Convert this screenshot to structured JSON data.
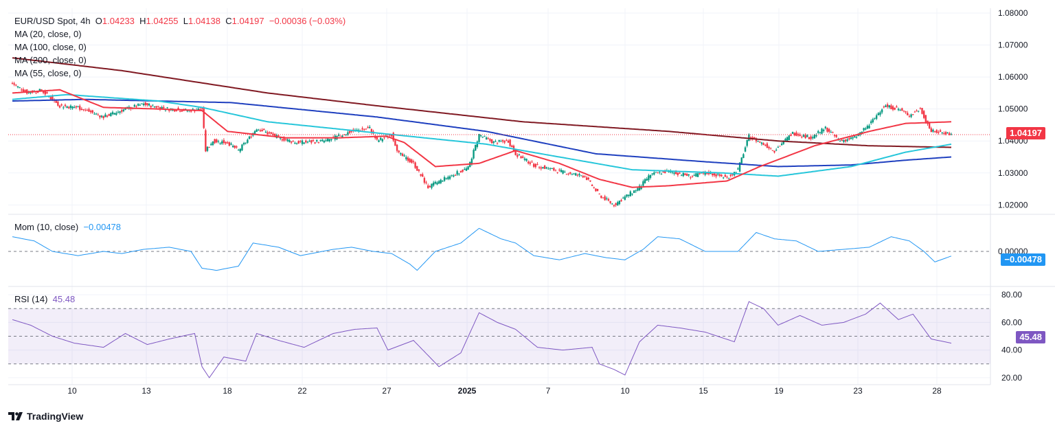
{
  "header": {
    "symbol": "EUR/USD Spot, 4h",
    "open_label": "O",
    "open": "1.04233",
    "high_label": "H",
    "high": "1.04255",
    "low_label": "L",
    "low": "1.04138",
    "close_label": "C",
    "close": "1.04197",
    "change": "−0.00036 (−0.03%)"
  },
  "legend": {
    "ma20": "MA (20, close, 0)",
    "ma100": "MA (100, close, 0)",
    "ma200": "MA (200, close, 0)",
    "ma55": "MA (55, close, 0)"
  },
  "mom": {
    "label": "Mom (10, close)",
    "value": "−0.00478",
    "tag": "−0.00478"
  },
  "rsi": {
    "label": "RSI (14)",
    "value": "45.48",
    "tag": "45.48"
  },
  "price_tag": "1.04197",
  "brand": "TradingView",
  "colors": {
    "up": "#089981",
    "down": "#f23645",
    "ma20": "#f23645",
    "ma55": "#26c6da",
    "ma100": "#1e3fbf",
    "ma200": "#801922",
    "mom": "#2196f3",
    "rsi": "#7e57c2"
  },
  "chart_data": {
    "type": "candlestick",
    "price_axis": {
      "ylim": [
        1.0175,
        1.0815
      ],
      "ticks": [
        "1.02000",
        "1.03000",
        "1.04000",
        "1.05000",
        "1.06000",
        "1.07000",
        "1.08000"
      ]
    },
    "x_ticks": [
      "10",
      "13",
      "18",
      "22",
      "27",
      "2025",
      "7",
      "10",
      "15",
      "19",
      "23",
      "28"
    ],
    "anchors": {
      "close": [
        [
          0,
          1.058
        ],
        [
          8,
          1.0552
        ],
        [
          16,
          1.0558
        ],
        [
          26,
          1.051
        ],
        [
          36,
          1.0505
        ],
        [
          50,
          1.0475
        ],
        [
          62,
          1.05
        ],
        [
          72,
          1.0515
        ],
        [
          86,
          1.05
        ],
        [
          96,
          1.0495
        ],
        [
          104,
          1.05
        ],
        [
          106,
          1.037
        ],
        [
          110,
          1.04
        ],
        [
          118,
          1.0395
        ],
        [
          124,
          1.037
        ],
        [
          130,
          1.041
        ],
        [
          134,
          1.044
        ],
        [
          146,
          1.041
        ],
        [
          156,
          1.0395
        ],
        [
          172,
          1.04
        ],
        [
          186,
          1.043
        ],
        [
          196,
          1.044
        ],
        [
          200,
          1.04
        ],
        [
          208,
          1.042
        ],
        [
          212,
          1.036
        ],
        [
          220,
          1.033
        ],
        [
          228,
          1.0255
        ],
        [
          238,
          1.0285
        ],
        [
          250,
          1.0315
        ],
        [
          256,
          1.042
        ],
        [
          264,
          1.0395
        ],
        [
          272,
          1.04
        ],
        [
          276,
          1.036
        ],
        [
          286,
          1.0325
        ],
        [
          300,
          1.0305
        ],
        [
          314,
          1.029
        ],
        [
          322,
          1.023
        ],
        [
          330,
          1.02
        ],
        [
          336,
          1.0225
        ],
        [
          344,
          1.0255
        ],
        [
          350,
          1.0295
        ],
        [
          360,
          1.0305
        ],
        [
          372,
          1.029
        ],
        [
          382,
          1.03
        ],
        [
          392,
          1.0285
        ],
        [
          398,
          1.031
        ],
        [
          404,
          1.0415
        ],
        [
          412,
          1.039
        ],
        [
          418,
          1.037
        ],
        [
          428,
          1.0425
        ],
        [
          438,
          1.041
        ],
        [
          446,
          1.044
        ],
        [
          454,
          1.04
        ],
        [
          462,
          1.041
        ],
        [
          470,
          1.045
        ],
        [
          478,
          1.051
        ],
        [
          486,
          1.05
        ],
        [
          492,
          1.048
        ],
        [
          498,
          1.05
        ],
        [
          504,
          1.043
        ],
        [
          512,
          1.0425
        ],
        [
          515,
          1.042
        ]
      ],
      "ma20": [
        [
          0,
          1.055
        ],
        [
          26,
          1.056
        ],
        [
          50,
          1.0505
        ],
        [
          80,
          1.05
        ],
        [
          104,
          1.0495
        ],
        [
          118,
          1.043
        ],
        [
          150,
          1.041
        ],
        [
          180,
          1.041
        ],
        [
          205,
          1.0415
        ],
        [
          215,
          1.0395
        ],
        [
          232,
          1.032
        ],
        [
          256,
          1.033
        ],
        [
          276,
          1.037
        ],
        [
          300,
          1.033
        ],
        [
          322,
          1.028
        ],
        [
          340,
          1.0255
        ],
        [
          360,
          1.026
        ],
        [
          392,
          1.0275
        ],
        [
          410,
          1.032
        ],
        [
          440,
          1.0385
        ],
        [
          470,
          1.043
        ],
        [
          490,
          1.0455
        ],
        [
          515,
          1.046
        ]
      ],
      "ma55": [
        [
          0,
          1.053
        ],
        [
          30,
          1.0545
        ],
        [
          80,
          1.0525
        ],
        [
          104,
          1.0505
        ],
        [
          140,
          1.046
        ],
        [
          200,
          1.0425
        ],
        [
          260,
          1.039
        ],
        [
          300,
          1.035
        ],
        [
          340,
          1.031
        ],
        [
          390,
          1.03
        ],
        [
          420,
          1.029
        ],
        [
          460,
          1.032
        ],
        [
          490,
          1.0365
        ],
        [
          515,
          1.039
        ]
      ],
      "ma100": [
        [
          0,
          1.0525
        ],
        [
          40,
          1.053
        ],
        [
          120,
          1.052
        ],
        [
          200,
          1.0475
        ],
        [
          260,
          1.043
        ],
        [
          320,
          1.036
        ],
        [
          380,
          1.0335
        ],
        [
          420,
          1.032
        ],
        [
          460,
          1.0325
        ],
        [
          490,
          1.034
        ],
        [
          515,
          1.035
        ]
      ],
      "ma200": [
        [
          0,
          1.066
        ],
        [
          60,
          1.062
        ],
        [
          140,
          1.055
        ],
        [
          200,
          1.051
        ],
        [
          280,
          1.046
        ],
        [
          360,
          1.043
        ],
        [
          420,
          1.04
        ],
        [
          470,
          1.0385
        ],
        [
          515,
          1.038
        ]
      ],
      "mom": [
        [
          0,
          0.35
        ],
        [
          12,
          0.25
        ],
        [
          22,
          0.0
        ],
        [
          36,
          -0.1
        ],
        [
          50,
          0.0
        ],
        [
          60,
          -0.05
        ],
        [
          72,
          0.05
        ],
        [
          86,
          0.1
        ],
        [
          98,
          0.0
        ],
        [
          104,
          -0.4
        ],
        [
          112,
          -0.45
        ],
        [
          124,
          -0.35
        ],
        [
          132,
          0.2
        ],
        [
          146,
          0.1
        ],
        [
          158,
          -0.1
        ],
        [
          176,
          0.05
        ],
        [
          186,
          0.1
        ],
        [
          198,
          0.0
        ],
        [
          208,
          -0.05
        ],
        [
          214,
          -0.2
        ],
        [
          218,
          -0.3
        ],
        [
          222,
          -0.45
        ],
        [
          232,
          0.0
        ],
        [
          246,
          0.2
        ],
        [
          256,
          0.55
        ],
        [
          268,
          0.3
        ],
        [
          276,
          0.2
        ],
        [
          286,
          -0.1
        ],
        [
          300,
          -0.2
        ],
        [
          314,
          -0.05
        ],
        [
          326,
          -0.15
        ],
        [
          336,
          -0.2
        ],
        [
          346,
          0.05
        ],
        [
          354,
          0.35
        ],
        [
          366,
          0.3
        ],
        [
          380,
          0.0
        ],
        [
          398,
          0.0
        ],
        [
          408,
          0.45
        ],
        [
          418,
          0.3
        ],
        [
          430,
          0.25
        ],
        [
          442,
          0.0
        ],
        [
          456,
          0.05
        ],
        [
          470,
          0.1
        ],
        [
          482,
          0.35
        ],
        [
          492,
          0.25
        ],
        [
          500,
          0.0
        ],
        [
          506,
          -0.25
        ],
        [
          515,
          -0.11
        ]
      ],
      "rsi": [
        [
          0,
          62
        ],
        [
          10,
          58
        ],
        [
          22,
          50
        ],
        [
          34,
          45
        ],
        [
          50,
          42
        ],
        [
          62,
          52
        ],
        [
          74,
          44
        ],
        [
          86,
          48
        ],
        [
          100,
          52
        ],
        [
          104,
          28
        ],
        [
          108,
          20
        ],
        [
          116,
          35
        ],
        [
          128,
          32
        ],
        [
          134,
          52
        ],
        [
          146,
          47
        ],
        [
          160,
          42
        ],
        [
          176,
          52
        ],
        [
          188,
          55
        ],
        [
          200,
          56
        ],
        [
          206,
          40
        ],
        [
          220,
          47
        ],
        [
          234,
          28
        ],
        [
          246,
          38
        ],
        [
          256,
          67
        ],
        [
          266,
          60
        ],
        [
          276,
          55
        ],
        [
          288,
          42
        ],
        [
          302,
          40
        ],
        [
          318,
          42
        ],
        [
          322,
          30
        ],
        [
          330,
          26
        ],
        [
          336,
          22
        ],
        [
          344,
          46
        ],
        [
          354,
          58
        ],
        [
          366,
          56
        ],
        [
          380,
          53
        ],
        [
          396,
          46
        ],
        [
          404,
          75
        ],
        [
          412,
          70
        ],
        [
          420,
          58
        ],
        [
          432,
          65
        ],
        [
          444,
          58
        ],
        [
          456,
          60
        ],
        [
          468,
          66
        ],
        [
          476,
          74
        ],
        [
          486,
          62
        ],
        [
          494,
          66
        ],
        [
          504,
          48
        ],
        [
          515,
          45
        ]
      ]
    },
    "mom_axis": {
      "ylim": [
        -0.8,
        0.85
      ],
      "ticks": [
        "0.00000"
      ]
    },
    "rsi_axis": {
      "ylim": [
        15,
        85
      ],
      "ticks": [
        "20.00",
        "40.00",
        "60.00",
        "80.00"
      ],
      "bands": [
        30,
        50,
        70
      ]
    },
    "last_close": 1.04197
  }
}
